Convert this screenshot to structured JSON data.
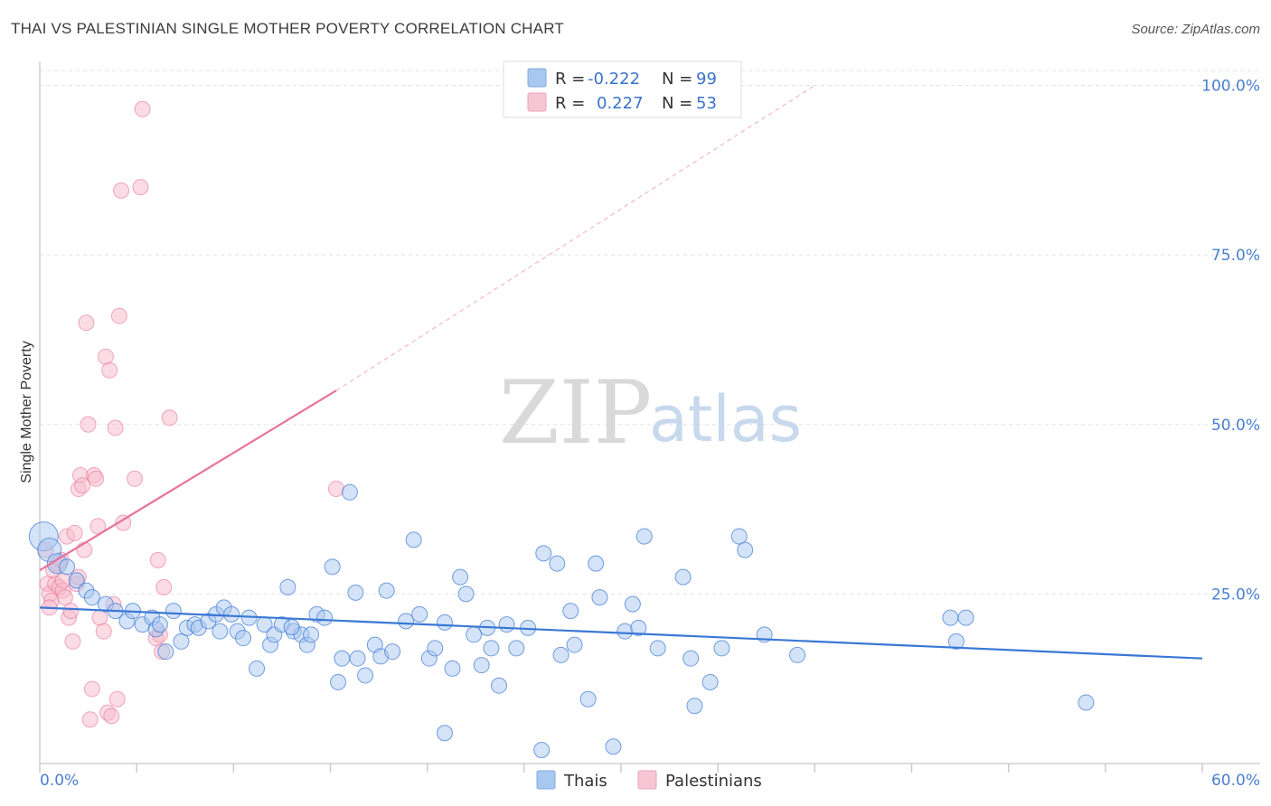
{
  "header": {
    "title": "THAI VS PALESTINIAN SINGLE MOTHER POVERTY CORRELATION CHART",
    "source": "Source: ZipAtlas.com"
  },
  "watermark": {
    "part1": "ZIP",
    "part2": "atlas"
  },
  "legend": {
    "r_label": "R =",
    "n_label": "N =",
    "rows": [
      {
        "r": "-0.222",
        "n": "99",
        "color": "#a9c8f0"
      },
      {
        "r": "0.227",
        "n": "53",
        "color": "#f7b9cb"
      }
    ]
  },
  "bottom_legend": [
    {
      "label": "Thais",
      "color": "#a9c8f0"
    },
    {
      "label": "Palestinians",
      "color": "#f7b9cb"
    }
  ],
  "chart_data": {
    "type": "scatter",
    "xlabel": "",
    "ylabel": "Single Mother Poverty",
    "xlim": [
      0,
      60
    ],
    "ylim": [
      0,
      105
    ],
    "x_tick_labels": [
      "0.0%",
      "60.0%"
    ],
    "y_tick_labels": [
      {
        "value": 100,
        "label": "100.0%"
      },
      {
        "value": 75,
        "label": "75.0%"
      },
      {
        "value": 50,
        "label": "50.0%"
      },
      {
        "value": 25,
        "label": "25.0%"
      }
    ],
    "grid": "horizontal dashed",
    "colors": {
      "thais": "#3a78d4",
      "thais_fill": "#a9c8f0",
      "pal": "#e8729a",
      "pal_fill": "#f7b9cb"
    },
    "series": [
      {
        "name": "Thais",
        "points": [
          [
            0.2,
            33.5
          ],
          [
            0.5,
            31.5
          ],
          [
            0.9,
            29.5
          ],
          [
            1.4,
            29.0
          ],
          [
            1.9,
            27.0
          ],
          [
            2.4,
            25.5
          ],
          [
            2.7,
            24.5
          ],
          [
            3.4,
            23.5
          ],
          [
            3.9,
            22.5
          ],
          [
            4.5,
            21.0
          ],
          [
            4.8,
            22.5
          ],
          [
            5.3,
            20.5
          ],
          [
            5.8,
            21.5
          ],
          [
            6.0,
            19.8
          ],
          [
            6.2,
            20.5
          ],
          [
            6.5,
            16.5
          ],
          [
            6.9,
            22.5
          ],
          [
            7.3,
            18.0
          ],
          [
            7.6,
            20.0
          ],
          [
            8.0,
            20.5
          ],
          [
            8.2,
            20.0
          ],
          [
            8.7,
            21.0
          ],
          [
            9.1,
            22.0
          ],
          [
            9.3,
            19.5
          ],
          [
            9.5,
            23.0
          ],
          [
            9.9,
            22.0
          ],
          [
            10.2,
            19.5
          ],
          [
            10.5,
            18.5
          ],
          [
            10.8,
            21.5
          ],
          [
            11.2,
            14.0
          ],
          [
            11.6,
            20.5
          ],
          [
            11.9,
            17.5
          ],
          [
            12.1,
            19.0
          ],
          [
            12.5,
            20.5
          ],
          [
            12.8,
            26.0
          ],
          [
            13.1,
            19.5
          ],
          [
            13.5,
            19.0
          ],
          [
            13.8,
            17.5
          ],
          [
            14.0,
            19.0
          ],
          [
            14.3,
            22.0
          ],
          [
            14.7,
            21.5
          ],
          [
            15.1,
            29.0
          ],
          [
            15.4,
            12.0
          ],
          [
            15.6,
            15.5
          ],
          [
            16.0,
            40.0
          ],
          [
            16.4,
            15.5
          ],
          [
            16.8,
            13.0
          ],
          [
            17.3,
            17.5
          ],
          [
            17.6,
            15.8
          ],
          [
            17.9,
            25.5
          ],
          [
            18.2,
            16.5
          ],
          [
            18.9,
            21.0
          ],
          [
            19.3,
            33.0
          ],
          [
            19.6,
            22.0
          ],
          [
            20.1,
            15.5
          ],
          [
            20.4,
            17.0
          ],
          [
            20.9,
            4.5
          ],
          [
            21.3,
            14.0
          ],
          [
            21.7,
            27.5
          ],
          [
            22.0,
            25.0
          ],
          [
            22.4,
            19.0
          ],
          [
            22.8,
            14.5
          ],
          [
            23.1,
            20.0
          ],
          [
            23.3,
            17.0
          ],
          [
            23.7,
            11.5
          ],
          [
            24.1,
            20.5
          ],
          [
            24.6,
            17.0
          ],
          [
            25.2,
            20.0
          ],
          [
            25.9,
            2.0
          ],
          [
            26.0,
            31.0
          ],
          [
            26.7,
            29.5
          ],
          [
            26.9,
            16.0
          ],
          [
            27.4,
            22.5
          ],
          [
            27.6,
            17.5
          ],
          [
            28.3,
            9.5
          ],
          [
            28.7,
            29.5
          ],
          [
            28.9,
            24.5
          ],
          [
            29.6,
            2.5
          ],
          [
            30.2,
            19.5
          ],
          [
            30.6,
            23.5
          ],
          [
            30.9,
            20.0
          ],
          [
            31.2,
            33.5
          ],
          [
            31.9,
            17.0
          ],
          [
            33.2,
            27.5
          ],
          [
            33.6,
            15.5
          ],
          [
            33.8,
            8.5
          ],
          [
            34.6,
            12.0
          ],
          [
            35.2,
            17.0
          ],
          [
            36.1,
            33.5
          ],
          [
            36.4,
            31.5
          ],
          [
            37.4,
            19.0
          ],
          [
            39.1,
            16.0
          ],
          [
            47.0,
            21.5
          ],
          [
            47.3,
            18.0
          ],
          [
            47.8,
            21.5
          ],
          [
            54.0,
            9.0
          ],
          [
            20.9,
            20.8
          ],
          [
            13.0,
            20.1
          ],
          [
            16.3,
            25.2
          ]
        ],
        "trend": [
          [
            0,
            23.0
          ],
          [
            60,
            15.5
          ]
        ]
      },
      {
        "name": "Palestinians",
        "points": [
          [
            0.3,
            31.5
          ],
          [
            0.4,
            26.5
          ],
          [
            0.5,
            25.0
          ],
          [
            0.6,
            24.0
          ],
          [
            0.7,
            28.5
          ],
          [
            0.8,
            26.5
          ],
          [
            0.9,
            29.5
          ],
          [
            1.0,
            26.0
          ],
          [
            1.1,
            30.0
          ],
          [
            1.2,
            25.5
          ],
          [
            1.3,
            24.5
          ],
          [
            1.4,
            33.5
          ],
          [
            1.5,
            21.5
          ],
          [
            1.6,
            22.5
          ],
          [
            1.7,
            18.0
          ],
          [
            1.8,
            34.0
          ],
          [
            1.9,
            26.5
          ],
          [
            2.0,
            40.5
          ],
          [
            2.1,
            42.5
          ],
          [
            2.2,
            41.0
          ],
          [
            2.3,
            31.5
          ],
          [
            2.4,
            65.0
          ],
          [
            2.5,
            50.0
          ],
          [
            2.6,
            6.5
          ],
          [
            2.7,
            11.0
          ],
          [
            2.8,
            42.5
          ],
          [
            2.9,
            42.0
          ],
          [
            3.0,
            35.0
          ],
          [
            3.1,
            21.5
          ],
          [
            3.3,
            19.5
          ],
          [
            3.4,
            60.0
          ],
          [
            3.5,
            7.5
          ],
          [
            3.6,
            58.0
          ],
          [
            3.7,
            7.0
          ],
          [
            3.8,
            23.5
          ],
          [
            3.9,
            49.5
          ],
          [
            4.0,
            9.5
          ],
          [
            4.1,
            66.0
          ],
          [
            4.2,
            84.5
          ],
          [
            4.3,
            35.5
          ],
          [
            4.9,
            42.0
          ],
          [
            5.2,
            85.0
          ],
          [
            5.3,
            96.5
          ],
          [
            6.0,
            18.5
          ],
          [
            6.1,
            30.0
          ],
          [
            6.3,
            16.5
          ],
          [
            6.4,
            26.0
          ],
          [
            6.7,
            51.0
          ],
          [
            15.3,
            40.5
          ],
          [
            0.5,
            23.0
          ],
          [
            1.2,
            27.0
          ],
          [
            2.0,
            27.5
          ],
          [
            6.2,
            19.0
          ]
        ],
        "trend": [
          [
            0,
            28.5
          ],
          [
            15.3,
            55.0
          ]
        ],
        "trend_extension": [
          [
            15.3,
            55.0
          ],
          [
            40,
            100
          ]
        ]
      }
    ]
  }
}
